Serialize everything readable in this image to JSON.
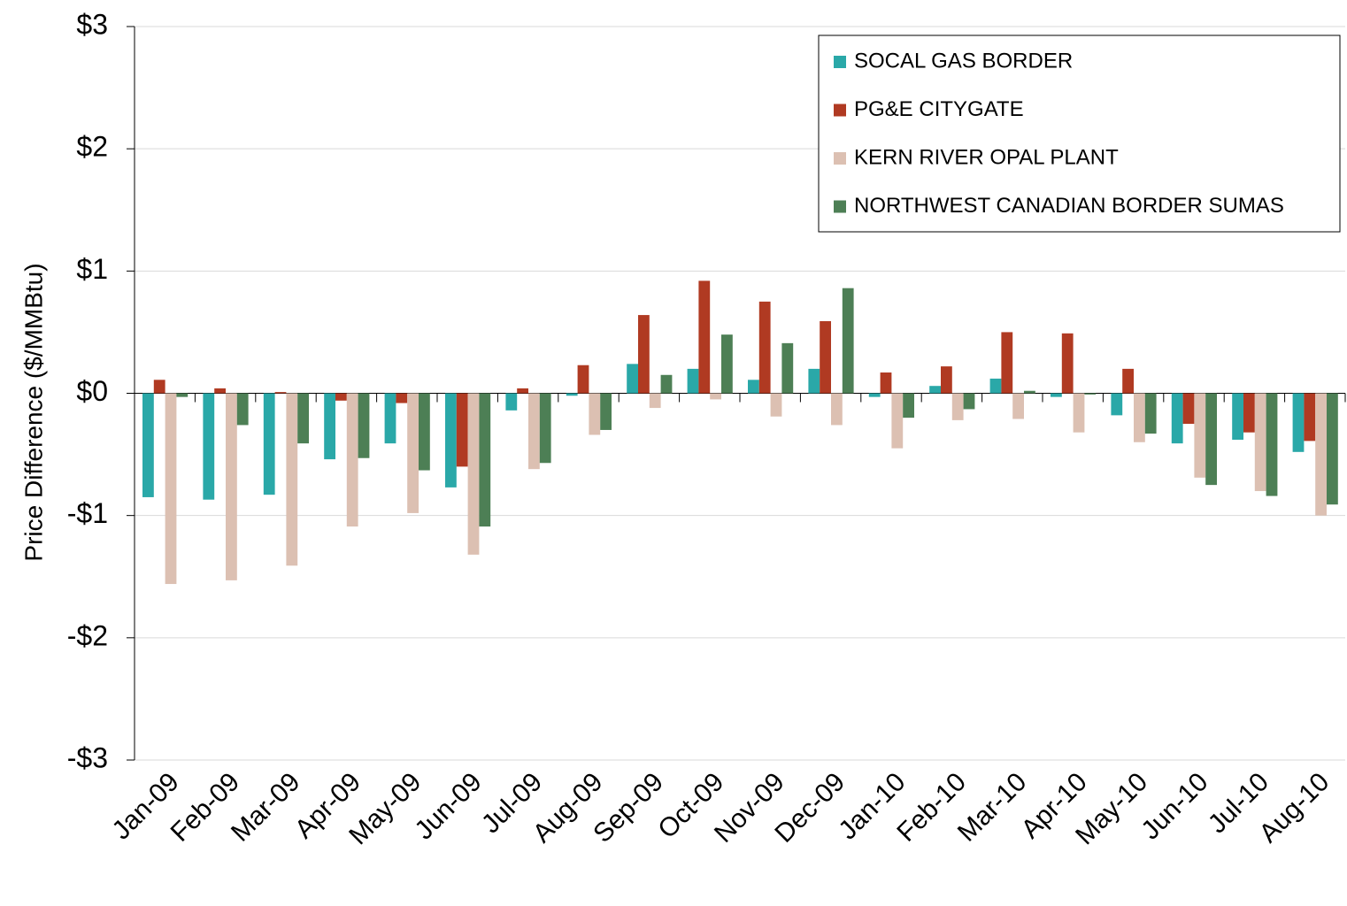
{
  "chart_data": {
    "type": "bar",
    "y_axis_label": "Price Difference  ($/MMBtu)",
    "categories": [
      "Jan-09",
      "Feb-09",
      "Mar-09",
      "Apr-09",
      "May-09",
      "Jun-09",
      "Jul-09",
      "Aug-09",
      "Sep-09",
      "Oct-09",
      "Nov-09",
      "Dec-09",
      "Jan-10",
      "Feb-10",
      "Mar-10",
      "Apr-10",
      "May-10",
      "Jun-10",
      "Jul-10",
      "Aug-10"
    ],
    "series": [
      {
        "name": "SOCAL GAS BORDER",
        "color": "#2aa8a8",
        "values": [
          -0.85,
          -0.87,
          -0.83,
          -0.54,
          -0.41,
          -0.77,
          -0.14,
          -0.02,
          0.24,
          0.2,
          0.11,
          0.2,
          -0.03,
          0.06,
          0.12,
          -0.03,
          -0.18,
          -0.41,
          -0.38,
          -0.48
        ]
      },
      {
        "name": "PG&E CITYGATE",
        "color": "#b03a22",
        "values": [
          0.11,
          0.04,
          0.01,
          -0.06,
          -0.08,
          -0.6,
          0.04,
          0.23,
          0.64,
          0.92,
          0.75,
          0.59,
          0.17,
          0.22,
          0.5,
          0.49,
          0.2,
          -0.25,
          -0.32,
          -0.39
        ]
      },
      {
        "name": "KERN RIVER OPAL PLANT",
        "color": "#dcc0b2",
        "values": [
          -1.56,
          -1.53,
          -1.41,
          -1.09,
          -0.98,
          -1.32,
          -0.62,
          -0.34,
          -0.12,
          -0.05,
          -0.19,
          -0.26,
          -0.45,
          -0.22,
          -0.21,
          -0.32,
          -0.4,
          -0.69,
          -0.8,
          -1.0
        ]
      },
      {
        "name": "NORTHWEST CANADIAN BORDER SUMAS",
        "color": "#4d7f55",
        "values": [
          -0.03,
          -0.26,
          -0.41,
          -0.53,
          -0.63,
          -1.09,
          -0.57,
          -0.3,
          0.15,
          0.48,
          0.41,
          0.86,
          -0.2,
          -0.13,
          0.02,
          -0.01,
          -0.33,
          -0.75,
          -0.84,
          -0.91
        ]
      }
    ],
    "ylim": [
      -3,
      3
    ],
    "yticks": [
      {
        "value": -3,
        "label": "-$3"
      },
      {
        "value": -2,
        "label": "-$2"
      },
      {
        "value": -1,
        "label": "-$1"
      },
      {
        "value": 0,
        "label": "$0"
      },
      {
        "value": 1,
        "label": "$1"
      },
      {
        "value": 2,
        "label": "$2"
      },
      {
        "value": 3,
        "label": "$3"
      }
    ],
    "grid": true,
    "legend": "top-right"
  }
}
